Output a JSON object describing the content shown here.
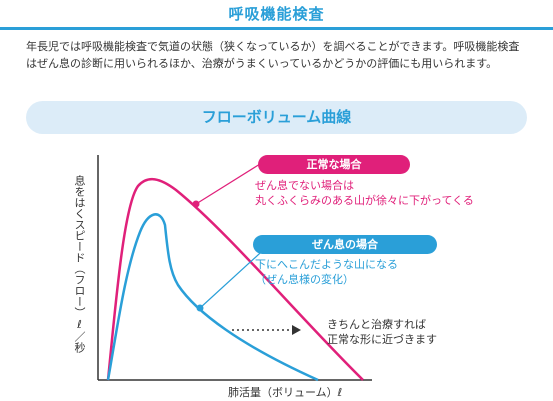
{
  "header": {
    "title": "呼吸機能検査"
  },
  "intro": {
    "text": "年長児では呼吸機能検査で気道の状態（狭くなっているか）を調べることができます。呼吸機能検査はぜん息の診断に用いられるほか、治療がうまくいっているかどうかの評価にも用いられます。"
  },
  "section": {
    "banner": "フローボリューム曲線"
  },
  "figure": {
    "ylabel": "息をはくスピード（フロー）ℓ／秒",
    "xlabel": "肺活量（ボリューム）ℓ",
    "normal_case": {
      "label": "正常な場合",
      "desc_line1": "ぜん息でない場合は",
      "desc_line2": "丸くふくらみのある山が徐々に下がってくる",
      "color": "#e0207a"
    },
    "asthma_case": {
      "label": "ぜん息の場合",
      "desc_line1": "下にへこんだような山になる",
      "desc_line2": "（ぜん息様の変化）",
      "color": "#2a9fd8"
    },
    "improvement": {
      "line1": "きちんと治療すれば",
      "line2": "正常な形に近づきます"
    }
  }
}
